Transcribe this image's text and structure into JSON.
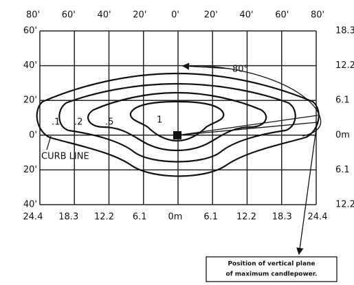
{
  "top_axis": [
    "80'",
    "60'",
    "40'",
    "20'",
    "0'",
    "20'",
    "40'",
    "60'",
    "80'"
  ],
  "left_axis": [
    "60'",
    "40'",
    "20'",
    "0'",
    "20'",
    "40'"
  ],
  "right_axis": [
    "18.3",
    "12.2",
    "6.1",
    "0m",
    "6.1",
    "12.2"
  ],
  "bottom_axis": [
    "24.4",
    "18.3",
    "12.2",
    "6.1",
    "0m",
    "6.1",
    "12.2",
    "18.3",
    "24.4"
  ],
  "contour_labels": [
    ".1",
    ".2",
    ".5",
    "1"
  ],
  "annotations": {
    "curb_line": "CURB LINE",
    "angle": "80°",
    "callout": [
      "Position of vertical plane",
      "of maximum candlepower."
    ]
  }
}
